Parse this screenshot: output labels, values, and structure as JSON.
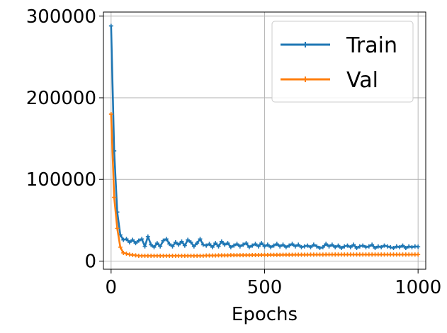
{
  "chart_data": {
    "type": "line",
    "title": "",
    "xlabel": "Epochs",
    "ylabel": "",
    "xlim": [
      -25,
      1025
    ],
    "ylim": [
      -10000,
      305000
    ],
    "xticks": [
      0,
      500,
      1000
    ],
    "yticks": [
      0,
      100000,
      200000,
      300000
    ],
    "xtick_labels": [
      "0",
      "500",
      "1000"
    ],
    "ytick_labels": [
      "0",
      "100000",
      "200000",
      "300000"
    ],
    "grid": true,
    "legend_position": "upper right",
    "x": [
      0,
      10,
      20,
      30,
      40,
      50,
      60,
      70,
      80,
      90,
      100,
      110,
      120,
      130,
      140,
      150,
      160,
      170,
      180,
      190,
      200,
      210,
      220,
      230,
      240,
      250,
      260,
      270,
      280,
      290,
      300,
      310,
      320,
      330,
      340,
      350,
      360,
      370,
      380,
      390,
      400,
      410,
      420,
      430,
      440,
      450,
      460,
      470,
      480,
      490,
      500,
      510,
      520,
      530,
      540,
      550,
      560,
      570,
      580,
      590,
      600,
      610,
      620,
      630,
      640,
      650,
      660,
      670,
      680,
      690,
      700,
      710,
      720,
      730,
      740,
      750,
      760,
      770,
      780,
      790,
      800,
      810,
      820,
      830,
      840,
      850,
      860,
      870,
      880,
      890,
      900,
      910,
      920,
      930,
      940,
      950,
      960,
      970,
      980,
      990,
      1000
    ],
    "series": [
      {
        "name": "Train",
        "color": "#1f77b4",
        "values": [
          288000,
          135000,
          60000,
          32000,
          26000,
          27000,
          23000,
          26000,
          22000,
          25000,
          27000,
          18000,
          30000,
          20000,
          17000,
          22000,
          18000,
          25000,
          27000,
          21000,
          18000,
          23000,
          20000,
          24000,
          19000,
          26000,
          23000,
          18000,
          22000,
          27000,
          20000,
          19000,
          21000,
          17000,
          22000,
          18000,
          24000,
          20000,
          22000,
          17000,
          19000,
          21000,
          18000,
          20000,
          22000,
          17000,
          19000,
          21000,
          18000,
          22000,
          18000,
          20000,
          17000,
          19000,
          21000,
          18000,
          20000,
          17000,
          19000,
          21000,
          18000,
          20000,
          17000,
          18000,
          19000,
          17000,
          20000,
          18000,
          16000,
          17000,
          21000,
          18000,
          20000,
          17000,
          19000,
          16000,
          18000,
          19000,
          17000,
          20000,
          16000,
          18000,
          19000,
          17000,
          18000,
          20000,
          16000,
          18000,
          17000,
          19000,
          18000,
          17000,
          16000,
          18000,
          17000,
          19000,
          16000,
          18000,
          17000,
          18000,
          17500
        ]
      },
      {
        "name": "Val",
        "color": "#ff7f0e",
        "values": [
          180000,
          78000,
          40000,
          17000,
          10000,
          9000,
          8000,
          7500,
          7000,
          6500,
          6500,
          6500,
          6500,
          6500,
          6500,
          6500,
          6500,
          6500,
          6500,
          6500,
          6500,
          6500,
          6500,
          6500,
          6500,
          6500,
          6500,
          6500,
          6500,
          6500,
          6500,
          6800,
          6800,
          6800,
          6800,
          7000,
          7000,
          7000,
          7000,
          7200,
          7200,
          7200,
          7200,
          7300,
          7300,
          7300,
          7400,
          7400,
          7400,
          7500,
          7500,
          7500,
          7600,
          7600,
          7600,
          7600,
          7700,
          7700,
          7700,
          7700,
          7800,
          7800,
          7800,
          7800,
          7800,
          7900,
          7900,
          7900,
          7900,
          7900,
          8000,
          8000,
          8000,
          8000,
          8000,
          8000,
          8000,
          8000,
          8000,
          8000,
          8000,
          8000,
          8000,
          8000,
          8000,
          8000,
          8000,
          8000,
          8000,
          8000,
          8000,
          8000,
          8000,
          8000,
          8000,
          8000,
          8000,
          8000,
          8000,
          8000,
          8000
        ]
      }
    ]
  }
}
